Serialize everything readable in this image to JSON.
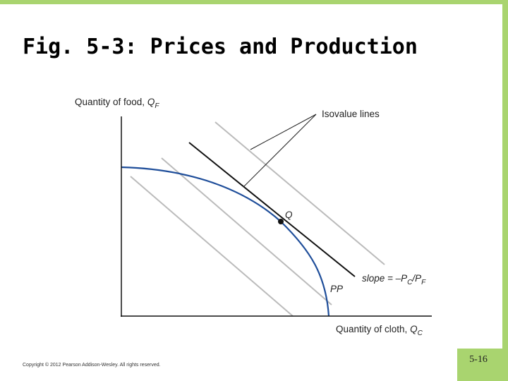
{
  "header": {
    "title": "Fig. 5-3:  Prices and Production"
  },
  "diagram": {
    "y_axis_label": {
      "text": "Quantity of food, ",
      "symbol": "Q",
      "subscript": "F"
    },
    "x_axis_label": {
      "text": "Quantity of cloth, ",
      "symbol": "Q",
      "subscript": "C"
    },
    "callout": "Isovalue lines",
    "point_label": "Q",
    "curve_label": "PP",
    "slope_label": {
      "parts": [
        "slope = –P",
        "C",
        "/P",
        "F"
      ]
    }
  },
  "footer": {
    "copyright": "Copyright © 2012 Pearson Addison-Wesley. All rights reserved.",
    "page_number": "5-16"
  }
}
